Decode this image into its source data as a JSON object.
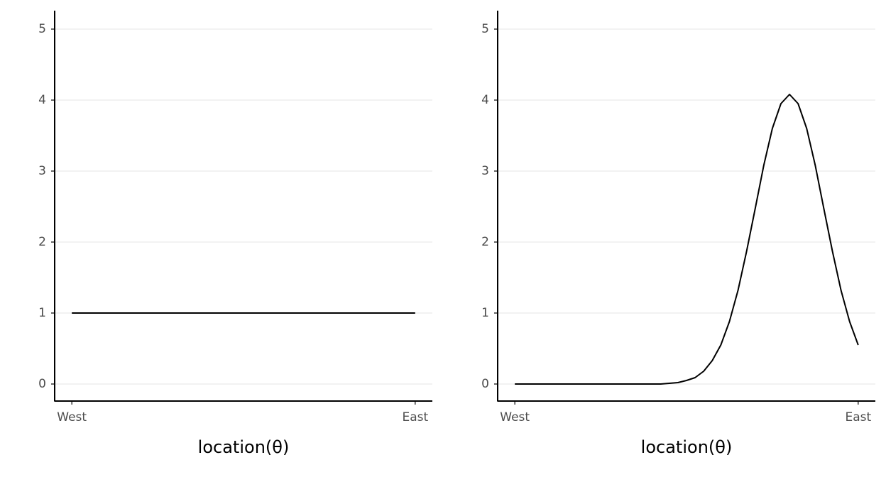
{
  "chart_data": [
    {
      "type": "line",
      "x_label": "location(θ)",
      "x": [
        0,
        1
      ],
      "series": [
        {
          "color": "#000000",
          "values": [
            1,
            1
          ]
        }
      ],
      "xlim": [
        -0.05,
        1.05
      ],
      "xticks": [
        {
          "value": 0,
          "label": "West"
        },
        {
          "value": 1,
          "label": "East"
        }
      ],
      "ylim": [
        -0.24,
        5.26
      ],
      "yticks": [
        0,
        1,
        2,
        3,
        4,
        5
      ],
      "grid": true
    },
    {
      "type": "line",
      "x_label": "location(θ)",
      "x": [
        0,
        0.025,
        0.05,
        0.075,
        0.1,
        0.125,
        0.15,
        0.175,
        0.2,
        0.225,
        0.25,
        0.275,
        0.3,
        0.325,
        0.35,
        0.375,
        0.4,
        0.425,
        0.45,
        0.475,
        0.5,
        0.525,
        0.55,
        0.575,
        0.6,
        0.625,
        0.65,
        0.675,
        0.7,
        0.725,
        0.75,
        0.775,
        0.8,
        0.825,
        0.85,
        0.875,
        0.9,
        0.925,
        0.95,
        0.975,
        1
      ],
      "series": [
        {
          "color": "#000000",
          "values": [
            0,
            0,
            0,
            0,
            0,
            0,
            0,
            0,
            0,
            0,
            0,
            0,
            0,
            0,
            0,
            0,
            0,
            0,
            0.01,
            0.02,
            0.05,
            0.09,
            0.18,
            0.33,
            0.55,
            0.88,
            1.32,
            1.87,
            2.47,
            3.08,
            3.6,
            3.95,
            4.08,
            3.95,
            3.6,
            3.08,
            2.47,
            1.87,
            1.32,
            0.88,
            0.55
          ]
        }
      ],
      "xlim": [
        -0.05,
        1.05
      ],
      "xticks": [
        {
          "value": 0,
          "label": "West"
        },
        {
          "value": 1,
          "label": "East"
        }
      ],
      "ylim": [
        -0.24,
        5.26
      ],
      "yticks": [
        0,
        1,
        2,
        3,
        4,
        5
      ],
      "grid": true
    }
  ]
}
